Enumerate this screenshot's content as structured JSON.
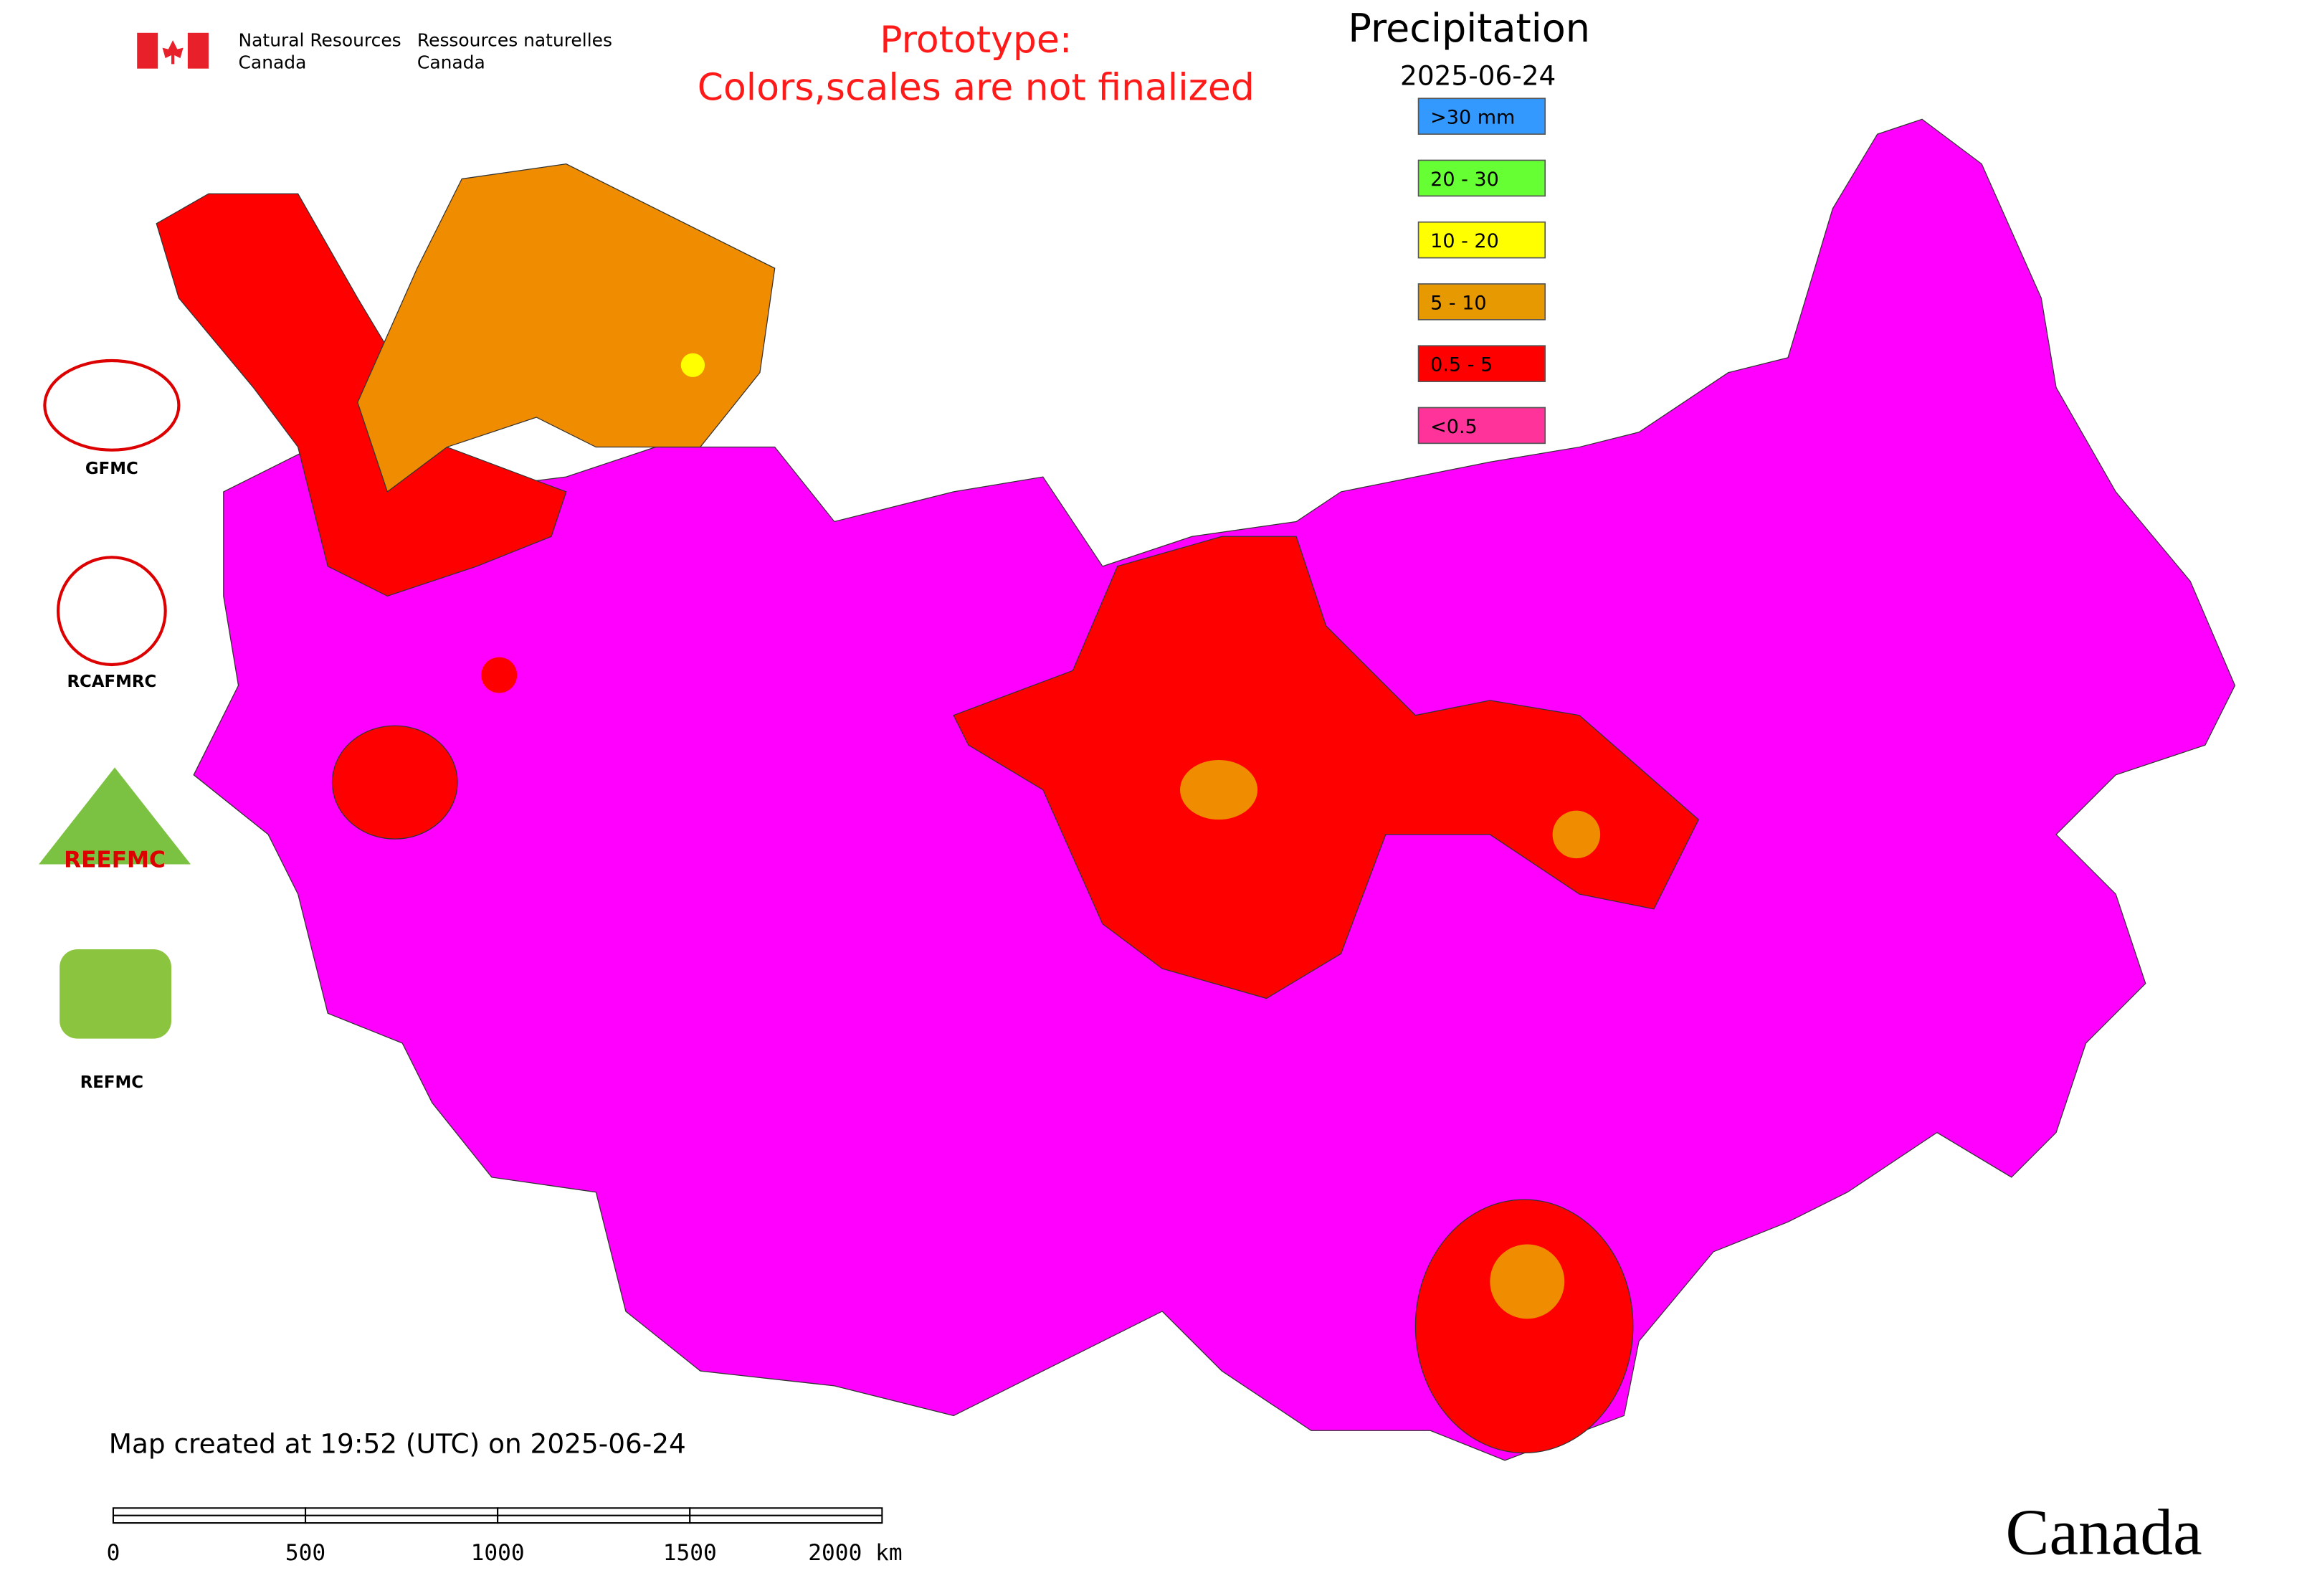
{
  "header": {
    "agency_en": [
      "Natural Resources",
      "Canada"
    ],
    "agency_fr": [
      "Ressources naturelles",
      "Canada"
    ]
  },
  "notice": [
    "Prototype:",
    "Colors,scales are not finalized"
  ],
  "legend": {
    "title": "Precipitation",
    "date": "2025-06-24",
    "items": [
      {
        "label": ">30 mm",
        "color": "#3399ff"
      },
      {
        "label": "20 - 30",
        "color": "#66ff33"
      },
      {
        "label": "10 - 20",
        "color": "#ffff00"
      },
      {
        "label": "5 - 10",
        "color": "#e69900"
      },
      {
        "label": "0.5 - 5",
        "color": "#ff0000"
      },
      {
        "label": "<0.5",
        "color": "#ff3399"
      }
    ]
  },
  "logos": [
    "GFMC",
    "RCAFMRC",
    "REEFMC",
    "REFMC"
  ],
  "footer": {
    "created": "Map created at 19:52 (UTC) on 2025-06-24"
  },
  "scale_bar": {
    "labels": [
      "0",
      "500",
      "1000",
      "1500",
      "2000 km"
    ]
  },
  "wordmark": "Canada"
}
